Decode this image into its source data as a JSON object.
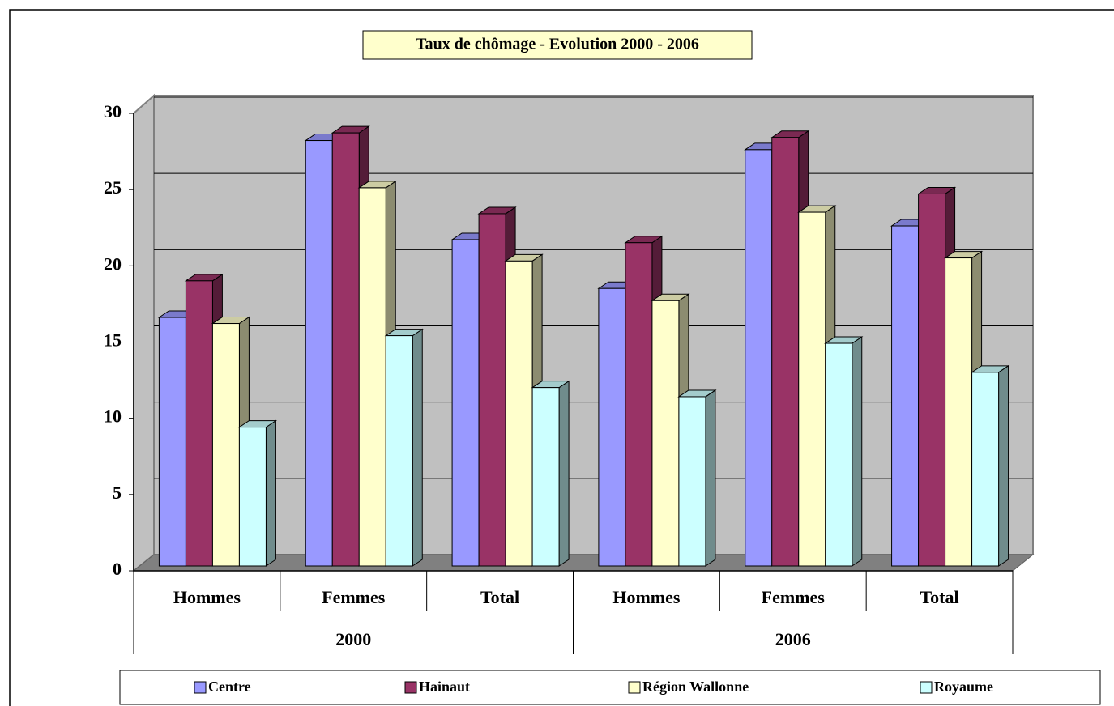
{
  "chart_data": {
    "type": "bar3d",
    "title": "Taux de chômage - Evolution 2000 - 2006",
    "categories": [
      "Hommes",
      "Femmes",
      "Total",
      "Hommes",
      "Femmes",
      "Total"
    ],
    "groups": [
      "2000",
      "2006"
    ],
    "series": [
      {
        "name": "Centre",
        "color": "#9999ff",
        "values": [
          16.3,
          27.9,
          21.4,
          18.2,
          27.3,
          22.3
        ]
      },
      {
        "name": "Hainaut",
        "color": "#993366",
        "values": [
          18.7,
          28.4,
          23.1,
          21.2,
          28.1,
          24.4
        ]
      },
      {
        "name": "Région Wallonne",
        "color": "#ffffcc",
        "values": [
          15.9,
          24.8,
          20.0,
          17.4,
          23.2,
          20.2
        ]
      },
      {
        "name": "Royaume",
        "color": "#ccffff",
        "values": [
          9.1,
          15.1,
          11.7,
          11.1,
          14.6,
          12.7
        ]
      }
    ],
    "ylim": [
      0,
      30
    ],
    "yticks": [
      0,
      5,
      10,
      15,
      20,
      25,
      30
    ],
    "grid": true,
    "legend": "bottom"
  }
}
